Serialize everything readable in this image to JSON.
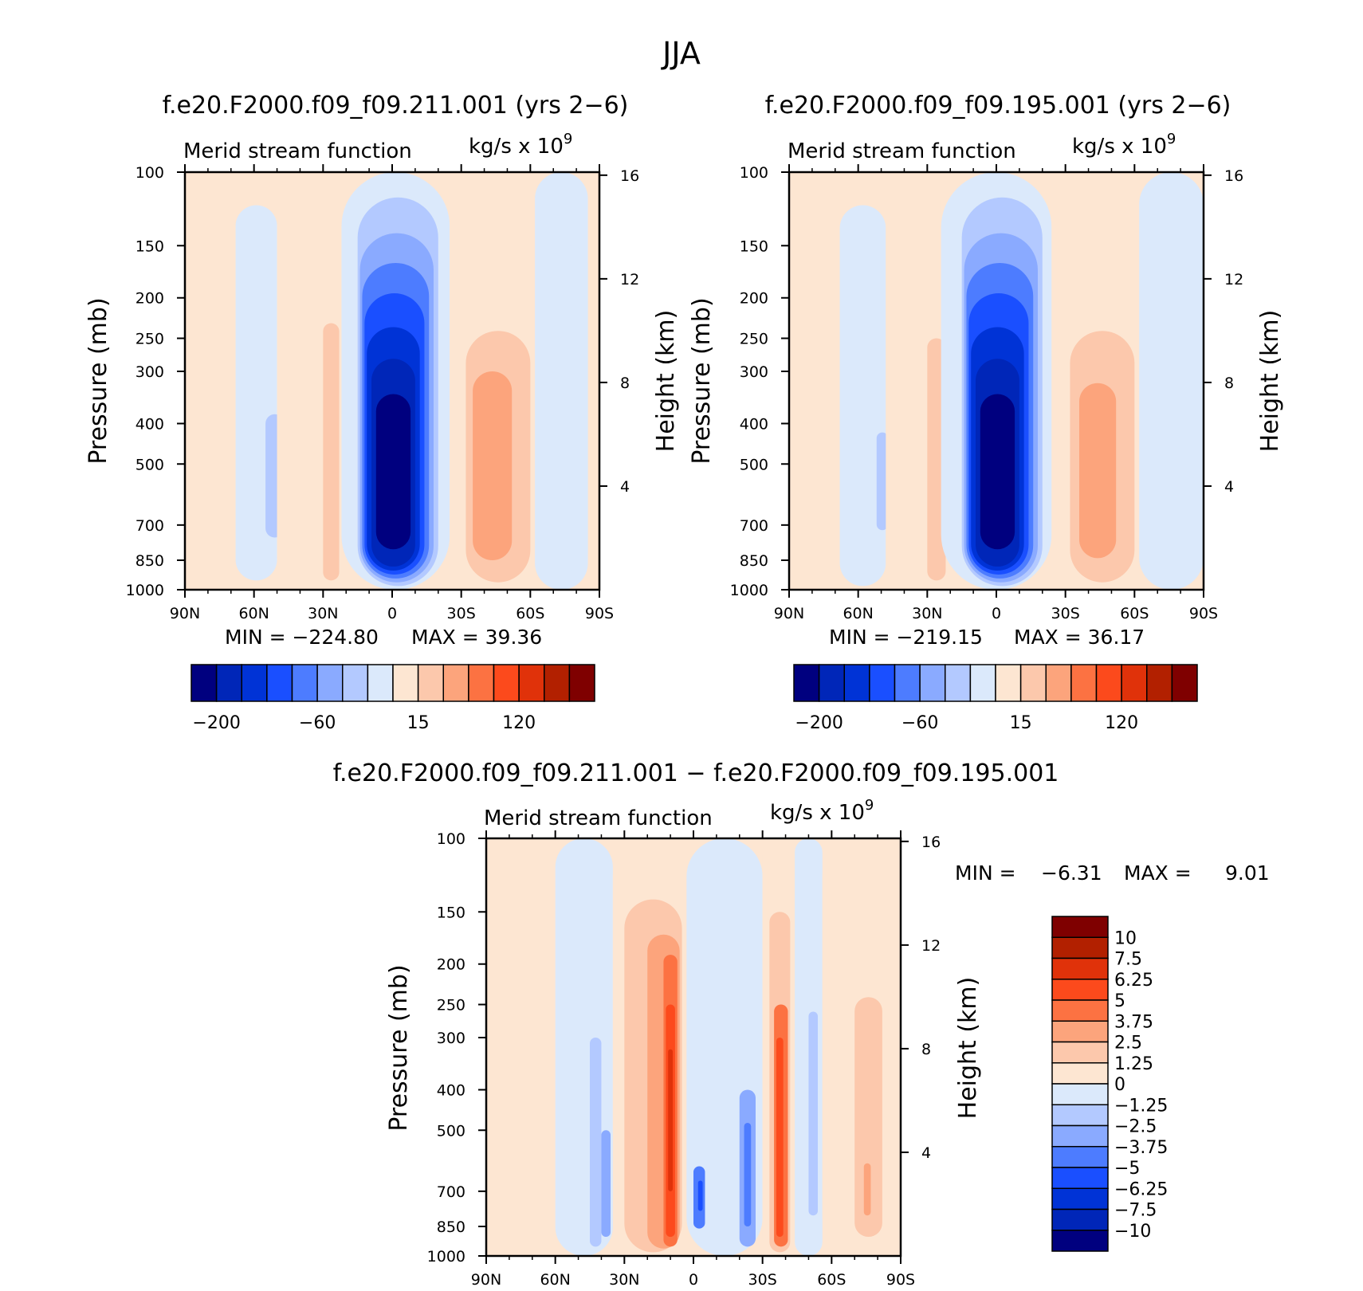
{
  "figure_title": "JJA",
  "colors": {
    "panel_scale": [
      "#00007f",
      "#0026b8",
      "#0033d6",
      "#1a4fff",
      "#4d7cff",
      "#8aaaff",
      "#b3c9ff",
      "#dbe9fb",
      "#fde6d2",
      "#fcc8ac",
      "#fca47c",
      "#fc7242",
      "#fc4a1c",
      "#e0320a",
      "#b22000",
      "#7f0000"
    ],
    "diff_scale": [
      "#00007f",
      "#0026b8",
      "#0033d6",
      "#1a4fff",
      "#4d7cff",
      "#8aaaff",
      "#b3c9ff",
      "#dbe9fb",
      "#fde6d2",
      "#fcc8ac",
      "#fca47c",
      "#fc7242",
      "#fc4a1c",
      "#e0320a",
      "#b22000",
      "#7f0000"
    ]
  },
  "chart_data": [
    {
      "type": "heatmap",
      "id": "panel-211",
      "title": "f.e20.F2000.f09_f09.211.001 (yrs 2−6)",
      "subtitle_left": "Merid stream function",
      "units": "kg/s x 10",
      "units_exp": "9",
      "xlabel": "",
      "ylabel": "Pressure (mb)",
      "y2label": "Height (km)",
      "x_ticks": [
        "90N",
        "60N",
        "30N",
        "0",
        "30S",
        "60S",
        "90S"
      ],
      "y_ticks": [
        100,
        150,
        200,
        250,
        300,
        400,
        500,
        700,
        850,
        1000
      ],
      "y2_ticks": [
        16,
        12,
        8,
        4
      ],
      "min_label": "MIN = −224.80",
      "max_label": "MAX =  39.36",
      "colorbar_labels": [
        "−200",
        "−60",
        "15",
        "120"
      ],
      "min": -224.8,
      "max": 39.36,
      "cells": [
        {
          "lat": [
            -90,
            -85
          ],
          "p": [
            100,
            1000
          ],
          "level": 8
        },
        {
          "lat": [
            -85,
            -60
          ],
          "p": [
            100,
            1000
          ],
          "level": 8
        },
        {
          "lat": [
            -68,
            -50
          ],
          "p": [
            120,
            950
          ],
          "level": 7
        },
        {
          "lat": [
            -55,
            -47
          ],
          "p": [
            380,
            750
          ],
          "level": 6
        },
        {
          "lat": [
            -50,
            -22
          ],
          "p": [
            100,
            1000
          ],
          "level": 8
        },
        {
          "lat": [
            -30,
            -23
          ],
          "p": [
            230,
            950
          ],
          "level": 9
        },
        {
          "lat": [
            -22,
            25
          ],
          "p": [
            100,
            1000
          ],
          "level": 7
        },
        {
          "lat": [
            -15,
            20
          ],
          "p": [
            115,
            980
          ],
          "level": 6
        },
        {
          "lat": [
            -14,
            18
          ],
          "p": [
            140,
            960
          ],
          "level": 5
        },
        {
          "lat": [
            -13,
            16
          ],
          "p": [
            165,
            940
          ],
          "level": 4
        },
        {
          "lat": [
            -12,
            14
          ],
          "p": [
            195,
            920
          ],
          "level": 3
        },
        {
          "lat": [
            -11,
            12
          ],
          "p": [
            235,
            900
          ],
          "level": 2
        },
        {
          "lat": [
            -9,
            10
          ],
          "p": [
            280,
            880
          ],
          "level": 1
        },
        {
          "lat": [
            -7,
            8
          ],
          "p": [
            340,
            800
          ],
          "level": 0
        },
        {
          "lat": [
            25,
            62
          ],
          "p": [
            100,
            1000
          ],
          "level": 8
        },
        {
          "lat": [
            32,
            60
          ],
          "p": [
            240,
            960
          ],
          "level": 9
        },
        {
          "lat": [
            35,
            52
          ],
          "p": [
            300,
            850
          ],
          "level": 10
        },
        {
          "lat": [
            62,
            85
          ],
          "p": [
            100,
            1000
          ],
          "level": 7
        },
        {
          "lat": [
            70,
            85
          ],
          "p": [
            150,
            900
          ],
          "level": 7
        }
      ]
    },
    {
      "type": "heatmap",
      "id": "panel-195",
      "title": "f.e20.F2000.f09_f09.195.001 (yrs 2−6)",
      "subtitle_left": "Merid stream function",
      "units": "kg/s x 10",
      "units_exp": "9",
      "xlabel": "",
      "ylabel": "Pressure (mb)",
      "y2label": "Height (km)",
      "x_ticks": [
        "90N",
        "60N",
        "30N",
        "0",
        "30S",
        "60S",
        "90S"
      ],
      "y_ticks": [
        100,
        150,
        200,
        250,
        300,
        400,
        500,
        700,
        850,
        1000
      ],
      "y2_ticks": [
        16,
        12,
        8,
        4
      ],
      "min_label": "MIN = −219.15",
      "max_label": "MAX =  36.17",
      "colorbar_labels": [
        "−200",
        "−60",
        "15",
        "120"
      ],
      "min": -219.15,
      "max": 36.17,
      "cells": [
        {
          "lat": [
            -90,
            -85
          ],
          "p": [
            100,
            1000
          ],
          "level": 8
        },
        {
          "lat": [
            -85,
            -62
          ],
          "p": [
            100,
            1000
          ],
          "level": 8
        },
        {
          "lat": [
            -68,
            -48
          ],
          "p": [
            120,
            980
          ],
          "level": 7
        },
        {
          "lat": [
            -52,
            -47
          ],
          "p": [
            420,
            720
          ],
          "level": 6
        },
        {
          "lat": [
            -48,
            -24
          ],
          "p": [
            100,
            1000
          ],
          "level": 8
        },
        {
          "lat": [
            -30,
            -22
          ],
          "p": [
            250,
            950
          ],
          "level": 9
        },
        {
          "lat": [
            -24,
            24
          ],
          "p": [
            100,
            1000
          ],
          "level": 7
        },
        {
          "lat": [
            -15,
            20
          ],
          "p": [
            115,
            980
          ],
          "level": 6
        },
        {
          "lat": [
            -14,
            18
          ],
          "p": [
            140,
            960
          ],
          "level": 5
        },
        {
          "lat": [
            -13,
            16
          ],
          "p": [
            165,
            940
          ],
          "level": 4
        },
        {
          "lat": [
            -12,
            14
          ],
          "p": [
            195,
            920
          ],
          "level": 3
        },
        {
          "lat": [
            -11,
            12
          ],
          "p": [
            235,
            900
          ],
          "level": 2
        },
        {
          "lat": [
            -9,
            10
          ],
          "p": [
            280,
            880
          ],
          "level": 1
        },
        {
          "lat": [
            -7,
            8
          ],
          "p": [
            340,
            800
          ],
          "level": 0
        },
        {
          "lat": [
            24,
            62
          ],
          "p": [
            100,
            1000
          ],
          "level": 8
        },
        {
          "lat": [
            32,
            60
          ],
          "p": [
            240,
            960
          ],
          "level": 9
        },
        {
          "lat": [
            36,
            52
          ],
          "p": [
            320,
            840
          ],
          "level": 10
        },
        {
          "lat": [
            62,
            90
          ],
          "p": [
            100,
            1000
          ],
          "level": 7
        }
      ]
    },
    {
      "type": "heatmap",
      "id": "panel-diff",
      "title": "f.e20.F2000.f09_f09.211.001 − f.e20.F2000.f09_f09.195.001",
      "subtitle_left": "Merid stream function",
      "units": "kg/s x 10",
      "units_exp": "9",
      "xlabel": "",
      "ylabel": "Pressure (mb)",
      "y2label": "Height (km)",
      "x_ticks": [
        "90N",
        "60N",
        "30N",
        "0",
        "30S",
        "60S",
        "90S"
      ],
      "y_ticks": [
        100,
        150,
        200,
        250,
        300,
        400,
        500,
        700,
        850,
        1000
      ],
      "y2_ticks": [
        16,
        12,
        8,
        4
      ],
      "min_label": "MIN =",
      "min_value": "−6.31",
      "max_label": "MAX =",
      "max_value": "9.01",
      "colorbar_labels": [
        "10",
        "7.5",
        "6.25",
        "5",
        "3.75",
        "2.5",
        "1.25",
        "0",
        "−1.25",
        "−2.5",
        "−3.75",
        "−5",
        "−6.25",
        "−7.5",
        "−10"
      ],
      "min": -6.31,
      "max": 9.01,
      "cells": [
        {
          "lat": [
            -90,
            -60
          ],
          "p": [
            100,
            1000
          ],
          "level": 8
        },
        {
          "lat": [
            -60,
            -35
          ],
          "p": [
            100,
            1000
          ],
          "level": 7
        },
        {
          "lat": [
            -45,
            -40
          ],
          "p": [
            300,
            950
          ],
          "level": 6
        },
        {
          "lat": [
            -40,
            -36
          ],
          "p": [
            500,
            900
          ],
          "level": 5
        },
        {
          "lat": [
            -35,
            -3
          ],
          "p": [
            100,
            1000
          ],
          "level": 8
        },
        {
          "lat": [
            -30,
            -5
          ],
          "p": [
            140,
            980
          ],
          "level": 9
        },
        {
          "lat": [
            -20,
            -6
          ],
          "p": [
            170,
            960
          ],
          "level": 10
        },
        {
          "lat": [
            -13,
            -7
          ],
          "p": [
            190,
            950
          ],
          "level": 11
        },
        {
          "lat": [
            -12,
            -8
          ],
          "p": [
            250,
            900
          ],
          "level": 12
        },
        {
          "lat": [
            -11,
            -9
          ],
          "p": [
            320,
            700
          ],
          "level": 13
        },
        {
          "lat": [
            -3,
            30
          ],
          "p": [
            100,
            1000
          ],
          "level": 7
        },
        {
          "lat": [
            0,
            5
          ],
          "p": [
            610,
            860
          ],
          "level": 4
        },
        {
          "lat": [
            2,
            4
          ],
          "p": [
            660,
            780
          ],
          "level": 3
        },
        {
          "lat": [
            20,
            27
          ],
          "p": [
            400,
            950
          ],
          "level": 5
        },
        {
          "lat": [
            22,
            25
          ],
          "p": [
            480,
            850
          ],
          "level": 4
        },
        {
          "lat": [
            30,
            44
          ],
          "p": [
            100,
            1000
          ],
          "level": 8
        },
        {
          "lat": [
            33,
            42
          ],
          "p": [
            150,
            980
          ],
          "level": 9
        },
        {
          "lat": [
            35,
            41
          ],
          "p": [
            250,
            950
          ],
          "level": 11
        },
        {
          "lat": [
            36,
            39
          ],
          "p": [
            300,
            900
          ],
          "level": 12
        },
        {
          "lat": [
            44,
            56
          ],
          "p": [
            100,
            1000
          ],
          "level": 7
        },
        {
          "lat": [
            50,
            54
          ],
          "p": [
            260,
            800
          ],
          "level": 6
        },
        {
          "lat": [
            56,
            90
          ],
          "p": [
            100,
            1000
          ],
          "level": 8
        },
        {
          "lat": [
            70,
            82
          ],
          "p": [
            240,
            900
          ],
          "level": 9
        },
        {
          "lat": [
            74,
            77
          ],
          "p": [
            600,
            800
          ],
          "level": 10
        }
      ]
    }
  ]
}
